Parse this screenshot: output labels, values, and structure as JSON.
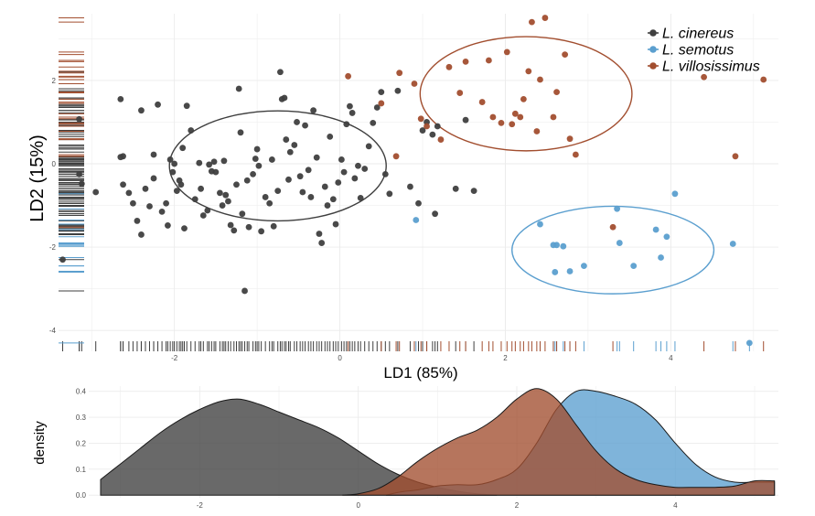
{
  "colors": {
    "cinereus": "#3f3f3f",
    "semotus": "#5b9fcf",
    "villosissimus": "#a24e2f",
    "grid": "#ebebeb",
    "panel": "#ffffff"
  },
  "chart_data": [
    {
      "type": "scatter",
      "title": "",
      "xlabel": "LD1 (85%)",
      "ylabel": "LD2 (15%)",
      "xlim": [
        -3.4,
        5.3
      ],
      "ylim": [
        -4.5,
        3.6
      ],
      "xticks": [
        -2,
        0,
        2,
        4
      ],
      "xtick_labels": [
        "-2",
        "0",
        "2",
        "4"
      ],
      "yticks": [
        -4,
        -2,
        0,
        2
      ],
      "ytick_labels": [
        "-4",
        "-2",
        "0",
        "2"
      ],
      "grid": true,
      "rug": true,
      "legend_position": "top-right",
      "ellipses": [
        {
          "group": "cinereus",
          "cx": -0.75,
          "cy": -0.05,
          "rx": 1.31,
          "ry": 1.32
        },
        {
          "group": "villosissimus",
          "cx": 2.25,
          "cy": 1.68,
          "rx": 1.28,
          "ry": 1.37
        },
        {
          "group": "semotus",
          "cx": 3.3,
          "cy": -2.07,
          "rx": 1.22,
          "ry": 1.05
        }
      ],
      "series": [
        {
          "name": "L. cinereus",
          "group": "cinereus",
          "points": [
            [
              -3.35,
              -2.3
            ],
            [
              -3.15,
              1.07
            ],
            [
              -3.15,
              -0.25
            ],
            [
              -3.12,
              -0.48
            ],
            [
              -2.95,
              -0.68
            ],
            [
              -2.65,
              1.55
            ],
            [
              -2.65,
              0.16
            ],
            [
              -2.62,
              0.18
            ],
            [
              -2.62,
              -0.5
            ],
            [
              -2.55,
              -0.7
            ],
            [
              -2.5,
              -0.95
            ],
            [
              -2.45,
              -1.37
            ],
            [
              -2.4,
              -1.7
            ],
            [
              -2.4,
              1.28
            ],
            [
              -2.35,
              -0.6
            ],
            [
              -2.3,
              -1.02
            ],
            [
              -2.25,
              -0.35
            ],
            [
              -2.25,
              0.22
            ],
            [
              -2.2,
              1.42
            ],
            [
              -2.15,
              -1.15
            ],
            [
              -2.1,
              -0.95
            ],
            [
              -2.08,
              -1.48
            ],
            [
              -2.05,
              0.1
            ],
            [
              -2.02,
              -0.2
            ],
            [
              -2.0,
              0.0
            ],
            [
              -1.97,
              -0.65
            ],
            [
              -1.94,
              -0.4
            ],
            [
              -1.92,
              -0.5
            ],
            [
              -1.9,
              0.38
            ],
            [
              -1.88,
              -1.55
            ],
            [
              -1.85,
              1.39
            ],
            [
              -1.8,
              0.8
            ],
            [
              -1.75,
              -0.85
            ],
            [
              -1.7,
              0.02
            ],
            [
              -1.68,
              -0.6
            ],
            [
              -1.65,
              -1.24
            ],
            [
              -1.6,
              -1.12
            ],
            [
              -1.58,
              -0.02
            ],
            [
              -1.55,
              -0.18
            ],
            [
              -1.52,
              0.05
            ],
            [
              -1.5,
              -0.2
            ],
            [
              -1.45,
              -0.7
            ],
            [
              -1.42,
              -1.0
            ],
            [
              -1.4,
              0.07
            ],
            [
              -1.38,
              -0.75
            ],
            [
              -1.35,
              -0.9
            ],
            [
              -1.32,
              -1.47
            ],
            [
              -1.28,
              -1.6
            ],
            [
              -1.25,
              -0.5
            ],
            [
              -1.22,
              1.8
            ],
            [
              -1.2,
              0.75
            ],
            [
              -1.18,
              -1.2
            ],
            [
              -1.15,
              -3.05
            ],
            [
              -1.12,
              -0.4
            ],
            [
              -1.1,
              -1.52
            ],
            [
              -1.05,
              -0.25
            ],
            [
              -1.02,
              0.12
            ],
            [
              -1.0,
              0.35
            ],
            [
              -0.98,
              -0.05
            ],
            [
              -0.95,
              -1.62
            ],
            [
              -0.9,
              -0.8
            ],
            [
              -0.85,
              -0.95
            ],
            [
              -0.82,
              0.1
            ],
            [
              -0.8,
              -1.5
            ],
            [
              -0.75,
              -0.65
            ],
            [
              -0.72,
              2.2
            ],
            [
              -0.7,
              1.55
            ],
            [
              -0.67,
              1.58
            ],
            [
              -0.65,
              0.58
            ],
            [
              -0.62,
              -0.38
            ],
            [
              -0.6,
              0.28
            ],
            [
              -0.55,
              0.45
            ],
            [
              -0.52,
              1.0
            ],
            [
              -0.48,
              -0.3
            ],
            [
              -0.45,
              -0.68
            ],
            [
              -0.42,
              0.92
            ],
            [
              -0.38,
              -0.15
            ],
            [
              -0.35,
              -0.8
            ],
            [
              -0.32,
              1.28
            ],
            [
              -0.28,
              0.15
            ],
            [
              -0.25,
              -1.68
            ],
            [
              -0.22,
              -1.9
            ],
            [
              -0.18,
              -0.55
            ],
            [
              -0.15,
              -1.0
            ],
            [
              -0.12,
              0.65
            ],
            [
              -0.08,
              -0.85
            ],
            [
              -0.05,
              -1.45
            ],
            [
              -0.02,
              -0.45
            ],
            [
              0.02,
              0.1
            ],
            [
              0.05,
              -0.2
            ],
            [
              0.08,
              0.95
            ],
            [
              0.12,
              1.38
            ],
            [
              0.15,
              1.22
            ],
            [
              0.18,
              -0.35
            ],
            [
              0.22,
              -0.05
            ],
            [
              0.25,
              -0.82
            ],
            [
              0.3,
              -0.12
            ],
            [
              0.35,
              0.42
            ],
            [
              0.4,
              0.98
            ],
            [
              0.45,
              1.35
            ],
            [
              0.5,
              1.72
            ],
            [
              0.55,
              -0.25
            ],
            [
              0.6,
              -0.72
            ],
            [
              0.7,
              1.75
            ],
            [
              0.85,
              -0.55
            ],
            [
              0.95,
              -0.95
            ],
            [
              1.0,
              0.8
            ],
            [
              1.05,
              1.0
            ],
            [
              1.12,
              0.7
            ],
            [
              1.15,
              -1.2
            ],
            [
              1.18,
              0.9
            ],
            [
              1.4,
              -0.6
            ],
            [
              1.52,
              1.05
            ],
            [
              1.62,
              -0.65
            ]
          ]
        },
        {
          "name": "L. semotus",
          "group": "semotus",
          "points": [
            [
              0.92,
              -1.35
            ],
            [
              2.42,
              -1.45
            ],
            [
              2.58,
              -1.95
            ],
            [
              2.6,
              -2.6
            ],
            [
              2.62,
              -1.95
            ],
            [
              2.7,
              -1.98
            ],
            [
              2.78,
              -2.58
            ],
            [
              2.95,
              -2.45
            ],
            [
              3.35,
              -1.08
            ],
            [
              3.38,
              -1.9
            ],
            [
              3.55,
              -2.45
            ],
            [
              3.82,
              -1.58
            ],
            [
              3.88,
              -2.25
            ],
            [
              3.95,
              -1.75
            ],
            [
              4.05,
              -0.72
            ],
            [
              4.75,
              -1.92
            ],
            [
              4.95,
              -4.3
            ]
          ]
        },
        {
          "name": "L. villosissimus",
          "group": "villosissimus",
          "points": [
            [
              0.1,
              2.1
            ],
            [
              0.5,
              1.45
            ],
            [
              0.68,
              0.18
            ],
            [
              0.72,
              2.18
            ],
            [
              0.9,
              1.92
            ],
            [
              0.98,
              1.08
            ],
            [
              1.05,
              0.9
            ],
            [
              1.22,
              0.58
            ],
            [
              1.32,
              2.32
            ],
            [
              1.45,
              1.7
            ],
            [
              1.52,
              2.45
            ],
            [
              1.72,
              1.48
            ],
            [
              1.8,
              2.48
            ],
            [
              1.85,
              1.12
            ],
            [
              1.95,
              0.98
            ],
            [
              2.02,
              2.68
            ],
            [
              2.08,
              0.95
            ],
            [
              2.12,
              1.2
            ],
            [
              2.18,
              1.12
            ],
            [
              2.22,
              1.55
            ],
            [
              2.28,
              2.22
            ],
            [
              2.32,
              3.4
            ],
            [
              2.38,
              0.78
            ],
            [
              2.42,
              2.02
            ],
            [
              2.48,
              3.5
            ],
            [
              2.58,
              1.12
            ],
            [
              2.62,
              1.72
            ],
            [
              2.72,
              2.62
            ],
            [
              2.78,
              0.6
            ],
            [
              2.85,
              0.22
            ],
            [
              3.3,
              -1.52
            ],
            [
              4.4,
              2.08
            ],
            [
              4.78,
              0.18
            ],
            [
              5.12,
              2.02
            ]
          ]
        }
      ]
    },
    {
      "type": "area",
      "title": "",
      "xlabel": "",
      "ylabel": "density",
      "xlim": [
        -3.4,
        5.3
      ],
      "ylim": [
        -0.01,
        0.42
      ],
      "xticks": [
        -2,
        0,
        2,
        4
      ],
      "xtick_labels": [
        "-2",
        "0",
        "2",
        "4"
      ],
      "yticks": [
        0.0,
        0.1,
        0.2,
        0.3,
        0.4
      ],
      "ytick_labels": [
        "0.0",
        "0.1",
        "0.2",
        "0.3",
        "0.4"
      ],
      "grid": true,
      "series": [
        {
          "group": "cinereus",
          "x": [
            -3.25,
            -3.0,
            -2.75,
            -2.5,
            -2.25,
            -2.0,
            -1.75,
            -1.5,
            -1.25,
            -1.0,
            -0.75,
            -0.5,
            -0.25,
            0.0,
            0.25,
            0.5,
            0.75,
            1.0,
            1.25,
            1.5,
            1.75
          ],
          "y": [
            0.06,
            0.12,
            0.18,
            0.24,
            0.29,
            0.33,
            0.36,
            0.37,
            0.35,
            0.32,
            0.29,
            0.26,
            0.22,
            0.17,
            0.12,
            0.08,
            0.05,
            0.03,
            0.015,
            0.005,
            0.0
          ]
        },
        {
          "group": "semotus",
          "x": [
            0.75,
            1.0,
            1.25,
            1.5,
            1.75,
            2.0,
            2.25,
            2.5,
            2.75,
            3.0,
            3.25,
            3.5,
            3.75,
            4.0,
            4.25,
            4.5,
            4.75,
            5.0,
            5.25
          ],
          "y": [
            0.02,
            0.035,
            0.04,
            0.04,
            0.06,
            0.1,
            0.2,
            0.33,
            0.4,
            0.4,
            0.38,
            0.35,
            0.29,
            0.2,
            0.12,
            0.07,
            0.05,
            0.05,
            0.05
          ],
          "left_tail_x": [
            0.35,
            0.5,
            0.6,
            0.75
          ],
          "left_tail_y": [
            0.0,
            0.01,
            0.015,
            0.02
          ]
        },
        {
          "group": "villosissimus",
          "x": [
            -0.2,
            0.0,
            0.25,
            0.5,
            0.75,
            1.0,
            1.25,
            1.5,
            1.75,
            2.0,
            2.25,
            2.5,
            2.75,
            3.0,
            3.25,
            3.5,
            3.75,
            4.0,
            4.25,
            4.5,
            4.75,
            5.0,
            5.25
          ],
          "y": [
            0.0,
            0.005,
            0.025,
            0.07,
            0.13,
            0.18,
            0.22,
            0.25,
            0.3,
            0.37,
            0.41,
            0.37,
            0.27,
            0.17,
            0.1,
            0.06,
            0.04,
            0.03,
            0.03,
            0.03,
            0.035,
            0.055,
            0.055
          ]
        }
      ]
    }
  ]
}
